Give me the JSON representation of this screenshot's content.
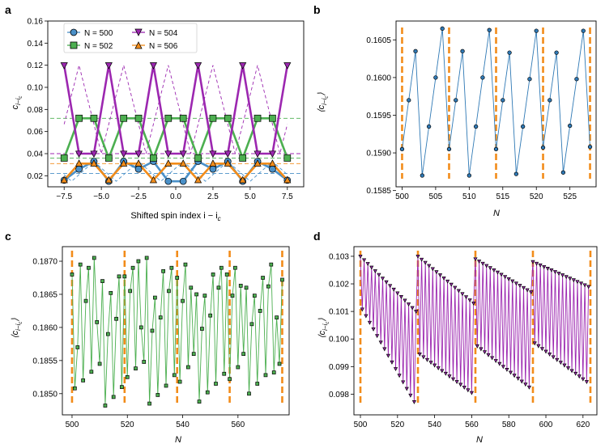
{
  "chart_data": [
    {
      "panel": "a",
      "type": "line",
      "xlabel": "Shifted spin index i − i_c",
      "ylabel": "c_{i−i_c}",
      "xlim": [
        -8.6,
        8.6
      ],
      "ylim": [
        0.01,
        0.16
      ],
      "xticks": [
        -7.5,
        -5.0,
        -2.5,
        0.0,
        2.5,
        5.0,
        7.5
      ],
      "xtick_labels": [
        "−7.5",
        "−5.0",
        "−2.5",
        "0.0",
        "2.5",
        "5.0",
        "7.5"
      ],
      "yticks": [
        0.02,
        0.04,
        0.06,
        0.08,
        0.1,
        0.12,
        0.14,
        0.16
      ],
      "ytick_labels": [
        "0.02",
        "0.04",
        "0.06",
        "0.08",
        "0.10",
        "0.12",
        "0.14",
        "0.16"
      ],
      "legend_position": "top-left",
      "series": [
        {
          "name": "N = 500",
          "color": "#4a90c8",
          "marker": "circle",
          "x": [
            -7.5,
            -6.5,
            -5.5,
            -4.5,
            -3.5,
            -2.5,
            -1.5,
            -0.5,
            0.5,
            1.5,
            2.5,
            3.5,
            4.5,
            5.5,
            6.5,
            7.5
          ],
          "values": [
            0.016,
            0.026,
            0.033,
            0.015,
            0.033,
            0.026,
            0.033,
            0.015,
            0.015,
            0.033,
            0.026,
            0.033,
            0.015,
            0.033,
            0.026,
            0.016
          ]
        },
        {
          "name": "N = 502",
          "color": "#4caf50",
          "marker": "square",
          "x": [
            -7.5,
            -6.5,
            -5.5,
            -4.5,
            -3.5,
            -2.5,
            -1.5,
            -0.5,
            0.5,
            1.5,
            2.5,
            3.5,
            4.5,
            5.5,
            6.5,
            7.5
          ],
          "values": [
            0.036,
            0.072,
            0.072,
            0.036,
            0.072,
            0.072,
            0.036,
            0.072,
            0.072,
            0.036,
            0.072,
            0.072,
            0.036,
            0.072,
            0.072,
            0.036
          ]
        },
        {
          "name": "N = 504",
          "color": "#9c27b0",
          "marker": "triangle-down",
          "x": [
            -7.5,
            -6.5,
            -5.5,
            -4.5,
            -3.5,
            -2.5,
            -1.5,
            -0.5,
            0.5,
            1.5,
            2.5,
            3.5,
            4.5,
            5.5,
            6.5,
            7.5
          ],
          "values": [
            0.12,
            0.04,
            0.04,
            0.12,
            0.04,
            0.04,
            0.12,
            0.04,
            0.04,
            0.12,
            0.04,
            0.04,
            0.12,
            0.04,
            0.04,
            0.12
          ]
        },
        {
          "name": "N = 506",
          "color": "#f28c1a",
          "marker": "triangle-up",
          "x": [
            -7.5,
            -6.5,
            -5.5,
            -4.5,
            -3.5,
            -2.5,
            -1.5,
            -0.5,
            0.5,
            1.5,
            2.5,
            3.5,
            4.5,
            5.5,
            6.5,
            7.5
          ],
          "values": [
            0.016,
            0.031,
            0.031,
            0.016,
            0.031,
            0.031,
            0.016,
            0.031,
            0.031,
            0.016,
            0.031,
            0.031,
            0.016,
            0.031,
            0.031,
            0.016
          ]
        }
      ],
      "reference_lines": [
        {
          "series": "N = 500",
          "y": 0.022
        },
        {
          "series": "N = 502",
          "y": 0.072
        },
        {
          "series": "N = 502",
          "y": 0.036
        },
        {
          "series": "N = 504",
          "y": 0.04
        },
        {
          "series": "N = 506",
          "y": 0.031
        }
      ],
      "dashed_waves": [
        {
          "series": "N = 500",
          "period": 3,
          "phase": 0.5,
          "lo": 0.015,
          "hi": 0.033
        },
        {
          "series": "N = 504",
          "period": 3,
          "phase": -0.5,
          "lo": 0.04,
          "hi": 0.12
        }
      ]
    },
    {
      "panel": "b",
      "type": "line",
      "xlabel": "N",
      "ylabel": "⟨c_{i−i_c}⟩",
      "xlim": [
        499.1,
        528.9
      ],
      "ylim": [
        0.15855,
        0.16075
      ],
      "xticks": [
        500,
        505,
        510,
        515,
        520,
        525
      ],
      "xtick_labels": [
        "500",
        "505",
        "510",
        "515",
        "520",
        "525"
      ],
      "yticks": [
        0.1585,
        0.159,
        0.1595,
        0.16,
        0.1605
      ],
      "ytick_labels": [
        "0.1585",
        "0.1590",
        "0.1595",
        "0.1600",
        "0.1605"
      ],
      "color": "#2f79b5",
      "marker": "circle",
      "vlines": [
        500,
        507,
        514,
        521,
        528
      ],
      "x": [
        500,
        501,
        502,
        503,
        504,
        505,
        506,
        507,
        508,
        509,
        510,
        511,
        512,
        513,
        514,
        515,
        516,
        517,
        518,
        519,
        520,
        521,
        522,
        523,
        524,
        525,
        526,
        527,
        528
      ],
      "values": [
        0.15905,
        0.1597,
        0.16035,
        0.1587,
        0.15935,
        0.16,
        0.16065,
        0.15905,
        0.1597,
        0.16035,
        0.1587,
        0.15935,
        0.16,
        0.16063,
        0.15905,
        0.1597,
        0.16033,
        0.15872,
        0.15935,
        0.15998,
        0.16062,
        0.15907,
        0.1597,
        0.16033,
        0.15874,
        0.15936,
        0.15998,
        0.16062,
        0.15908
      ]
    },
    {
      "panel": "c",
      "type": "line",
      "xlabel": "N",
      "ylabel": "⟨c_{i−i_c}⟩",
      "xlim": [
        496.5,
        578.5
      ],
      "ylim": [
        0.18468,
        0.18722
      ],
      "xticks": [
        500,
        520,
        540,
        560
      ],
      "xtick_labels": [
        "500",
        "520",
        "540",
        "560"
      ],
      "yticks": [
        0.185,
        0.1855,
        0.186,
        0.1865,
        0.187
      ],
      "ytick_labels": [
        "0.1850",
        "0.1855",
        "0.1860",
        "0.1865",
        "0.1870"
      ],
      "color": "#4caf50",
      "marker": "square",
      "vlines": [
        500,
        519,
        538,
        557,
        576
      ],
      "x": [
        500,
        501,
        502,
        503,
        504,
        505,
        506,
        507,
        508,
        509,
        510,
        511,
        512,
        513,
        514,
        515,
        516,
        517,
        518,
        519,
        520,
        521,
        522,
        523,
        524,
        525,
        526,
        527,
        528,
        529,
        530,
        531,
        532,
        533,
        534,
        535,
        536,
        537,
        538,
        539,
        540,
        541,
        542,
        543,
        544,
        545,
        546,
        547,
        548,
        549,
        550,
        551,
        552,
        553,
        554,
        555,
        556,
        557,
        558,
        559,
        560,
        561,
        562,
        563,
        564,
        565,
        566,
        567,
        568,
        569,
        570,
        571,
        572,
        573,
        574,
        575,
        576
      ],
      "values": [
        0.1868,
        0.18508,
        0.1857,
        0.18695,
        0.1852,
        0.1864,
        0.1869,
        0.18533,
        0.18705,
        0.18608,
        0.18545,
        0.1867,
        0.18482,
        0.1859,
        0.18652,
        0.18495,
        0.18613,
        0.18677,
        0.1851,
        0.18677,
        0.18525,
        0.18655,
        0.1869,
        0.18538,
        0.187,
        0.186,
        0.18548,
        0.18705,
        0.18485,
        0.18595,
        0.18645,
        0.18498,
        0.18615,
        0.18685,
        0.18512,
        0.18655,
        0.1869,
        0.18528,
        0.18675,
        0.18518,
        0.1864,
        0.18695,
        0.1854,
        0.1866,
        0.1856,
        0.1865,
        0.18488,
        0.18598,
        0.18648,
        0.18502,
        0.18618,
        0.1868,
        0.18515,
        0.1866,
        0.1869,
        0.1853,
        0.1868,
        0.18522,
        0.18648,
        0.1869,
        0.1854,
        0.18663,
        0.1856,
        0.1866,
        0.185,
        0.18605,
        0.18648,
        0.18515,
        0.18625,
        0.18675,
        0.18528,
        0.18662,
        0.18695,
        0.18532,
        0.18615,
        0.18545,
        0.18672
      ]
    },
    {
      "panel": "d",
      "type": "line",
      "xlabel": "N",
      "ylabel": "⟨c_{i−i_c}⟩",
      "xlim": [
        496.5,
        627.5
      ],
      "ylim": [
        0.09725,
        0.10335
      ],
      "xticks": [
        500,
        520,
        540,
        560,
        580,
        600,
        620
      ],
      "xtick_labels": [
        "500",
        "520",
        "540",
        "560",
        "580",
        "600",
        "620"
      ],
      "yticks": [
        0.098,
        0.099,
        0.1,
        0.101,
        0.102,
        0.103
      ],
      "ytick_labels": [
        "0.098",
        "0.099",
        "0.100",
        "0.101",
        "0.102",
        "0.103"
      ],
      "color": "#9c27b0",
      "marker": "triangle-down",
      "vlines": [
        500,
        531,
        562,
        593,
        624
      ],
      "segments": [
        {
          "start": 500,
          "end": 530,
          "upper_start": 0.103,
          "upper_end": 0.101,
          "lower_start": 0.1012,
          "lower_end": 0.0976
        },
        {
          "start": 531,
          "end": 561,
          "upper_start": 0.103,
          "upper_end": 0.1013,
          "lower_start": 0.0995,
          "lower_end": 0.098
        },
        {
          "start": 562,
          "end": 592,
          "upper_start": 0.1029,
          "upper_end": 0.1017,
          "lower_start": 0.0998,
          "lower_end": 0.0982
        },
        {
          "start": 593,
          "end": 623,
          "upper_start": 0.1028,
          "upper_end": 0.1019,
          "lower_start": 0.0999,
          "lower_end": 0.0984
        }
      ]
    }
  ],
  "panels": {
    "a": {
      "label": "a",
      "xlabel": "Shifted spin index i − i",
      "xlabel_sub": "c",
      "ylabel": "c",
      "ylabel_sub": "i−i",
      "ylabel_subsub": "c",
      "legend": [
        {
          "label": "N = 500"
        },
        {
          "label": "N = 504"
        },
        {
          "label": "N = 502"
        },
        {
          "label": "N = 506"
        }
      ]
    },
    "b": {
      "label": "b",
      "xlabel": "N",
      "ylabel_pre": "⟨c",
      "ylabel_sub": "i−i",
      "ylabel_subsub": "c",
      "ylabel_post": "⟩"
    },
    "c": {
      "label": "c",
      "xlabel": "N",
      "ylabel_pre": "⟨c",
      "ylabel_sub": "i−i",
      "ylabel_subsub": "c",
      "ylabel_post": "⟩"
    },
    "d": {
      "label": "d",
      "xlabel": "N",
      "ylabel_pre": "⟨c",
      "ylabel_sub": "i−i",
      "ylabel_subsub": "c",
      "ylabel_post": "⟩"
    }
  }
}
